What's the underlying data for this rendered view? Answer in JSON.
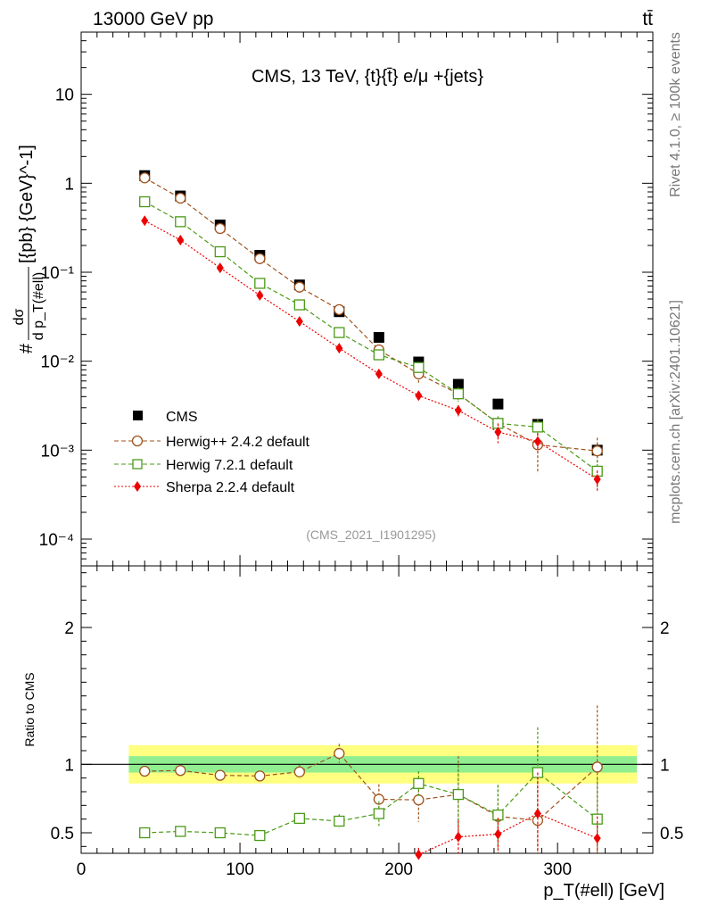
{
  "header": {
    "left": "13000 GeV pp",
    "right": "tt̄"
  },
  "side_labels": {
    "rivet": "Rivet 4.1.0, ≥ 100k events",
    "mcplots": "mcplots.cern.ch [arXiv:2401.10621]"
  },
  "chart_data": [
    {
      "type": "scatter",
      "scale": "log",
      "title": "CMS, 13 TeV, {t}{t̄} e/μ +{jets}",
      "watermark": "(CMS_2021_I1901295)",
      "ylabel_parts": {
        "hash": "#",
        "dsigma": "dσ",
        "dpt": "d p_T(#ell)",
        "units": "[{pb} {GeV}^-1]"
      },
      "yticks": [
        {
          "value": 0.0001,
          "label": "10⁻⁴"
        },
        {
          "value": 0.001,
          "label": "10⁻³"
        },
        {
          "value": 0.01,
          "label": "10⁻²"
        },
        {
          "value": 0.1,
          "label": "10⁻¹"
        },
        {
          "value": 1,
          "label": "1"
        },
        {
          "value": 10,
          "label": "10"
        }
      ],
      "xlim": [
        0,
        360
      ],
      "ylim": [
        5e-05,
        50
      ],
      "x": [
        40,
        62.5,
        87.5,
        112.5,
        137.5,
        162.5,
        187.5,
        212.5,
        237.5,
        262.5,
        287.5,
        325
      ],
      "series": [
        {
          "name": "CMS",
          "color": "#000000",
          "marker": "square-filled",
          "values": [
            1.22,
            0.72,
            0.34,
            0.155,
            0.072,
            0.036,
            0.0185,
            0.0098,
            0.0055,
            0.0033,
            0.00195,
            0.001
          ]
        },
        {
          "name": "Herwig++ 2.4.2 default",
          "color": "#a0521d",
          "marker": "circle-open",
          "dash": "5,3",
          "values": [
            1.15,
            0.68,
            0.31,
            0.142,
            0.068,
            0.038,
            0.0134,
            0.0072,
            0.0043,
            0.002,
            0.00115,
            0.00098
          ],
          "err_lo": [
            0,
            0,
            0,
            0,
            0,
            0,
            0.002,
            0.0015,
            0.0006,
            0.0003,
            0.0006,
            0.0003
          ],
          "err_hi": [
            0,
            0,
            0,
            0,
            0,
            0,
            0.002,
            0.0015,
            0.0006,
            0.0003,
            0.0006,
            0.0004
          ]
        },
        {
          "name": "Herwig 7.2.1 default",
          "color": "#4a9a16",
          "marker": "square-open",
          "dash": "5,3",
          "values": [
            0.62,
            0.37,
            0.17,
            0.075,
            0.043,
            0.021,
            0.0118,
            0.0085,
            0.0043,
            0.002,
            0.00182,
            0.00058
          ],
          "err_lo": [
            0,
            0,
            0,
            0,
            0,
            0,
            0.001,
            0.001,
            0.0008,
            0.0004,
            0.0004,
            0.0002
          ],
          "err_hi": [
            0,
            0,
            0,
            0,
            0,
            0,
            0.001,
            0.001,
            0.0008,
            0.0004,
            0.0004,
            0.0002
          ]
        },
        {
          "name": "Sherpa 2.2.4 default",
          "color": "#ee0000",
          "marker": "diamond-filled",
          "dash": "2,2",
          "values": [
            0.38,
            0.23,
            0.112,
            0.055,
            0.028,
            0.014,
            0.0072,
            0.0041,
            0.0028,
            0.0016,
            0.00125,
            0.00047
          ],
          "err_lo": [
            0,
            0,
            0,
            0,
            0,
            0,
            0,
            0,
            0.0004,
            0.0004,
            0.0003,
            0.00012
          ],
          "err_hi": [
            0,
            0,
            0,
            0,
            0,
            0,
            0,
            0,
            0.0004,
            0.0004,
            0.0003,
            0.00012
          ]
        }
      ]
    },
    {
      "type": "line",
      "ylabel": "Ratio to CMS",
      "xlabel": "p_T(#ell) [GeV]",
      "xlim": [
        0,
        360
      ],
      "ylim": [
        0.35,
        2.45
      ],
      "xticks": [
        {
          "value": 0,
          "label": "0"
        },
        {
          "value": 100,
          "label": "100"
        },
        {
          "value": 200,
          "label": "200"
        },
        {
          "value": 300,
          "label": "300"
        }
      ],
      "yticks": [
        {
          "value": 0.5,
          "label": "0.5"
        },
        {
          "value": 1,
          "label": "1"
        },
        {
          "value": 2,
          "label": "2"
        }
      ],
      "band": {
        "x_range": [
          30,
          350
        ],
        "inner": 0.06,
        "outer": 0.14,
        "inner_color": "#90ee90",
        "outer_color": "#ffff80"
      },
      "x": [
        40,
        62.5,
        87.5,
        112.5,
        137.5,
        162.5,
        187.5,
        212.5,
        237.5,
        262.5,
        287.5,
        325
      ],
      "series": [
        {
          "name": "Herwig++ 2.4.2 default",
          "color": "#a0521d",
          "marker": "circle-open",
          "dash": "5,3",
          "values": [
            0.95,
            0.955,
            0.92,
            0.915,
            0.945,
            1.08,
            0.745,
            0.74,
            0.78,
            0.62,
            0.59,
            0.98
          ],
          "err_lo": [
            0,
            0,
            0,
            0.03,
            0.05,
            0.07,
            0.11,
            0.16,
            0.28,
            0.28,
            0.35,
            0.45
          ],
          "err_hi": [
            0,
            0,
            0,
            0.03,
            0.05,
            0.07,
            0.11,
            0.14,
            0.28,
            0.23,
            0.55,
            0.45
          ]
        },
        {
          "name": "Herwig 7.2.1 default",
          "color": "#4a9a16",
          "marker": "square-open",
          "dash": "5,3",
          "values": [
            0.5,
            0.51,
            0.5,
            0.48,
            0.605,
            0.585,
            0.64,
            0.86,
            0.78,
            0.63,
            0.94,
            0.6
          ],
          "err_lo": [
            0,
            0,
            0,
            0.03,
            0.04,
            0.05,
            0.09,
            0.09,
            0.22,
            0.22,
            0.33,
            0.3
          ],
          "err_hi": [
            0,
            0,
            0,
            0.03,
            0.04,
            0.05,
            0.09,
            0.09,
            0.22,
            0.22,
            0.33,
            0.3
          ]
        },
        {
          "name": "Sherpa 2.2.4 default",
          "color": "#ee0000",
          "marker": "diamond-filled",
          "dash": "2,2",
          "values": [
            null,
            null,
            null,
            null,
            null,
            null,
            null,
            0.34,
            0.47,
            0.49,
            0.64,
            0.46
          ],
          "err_lo": [
            0,
            0,
            0,
            0,
            0,
            0,
            0,
            0.05,
            0.12,
            0.12,
            0.3,
            0.16
          ],
          "err_hi": [
            0,
            0,
            0,
            0,
            0,
            0,
            0,
            0.05,
            0.12,
            0.12,
            0.3,
            0.16
          ]
        }
      ]
    }
  ]
}
